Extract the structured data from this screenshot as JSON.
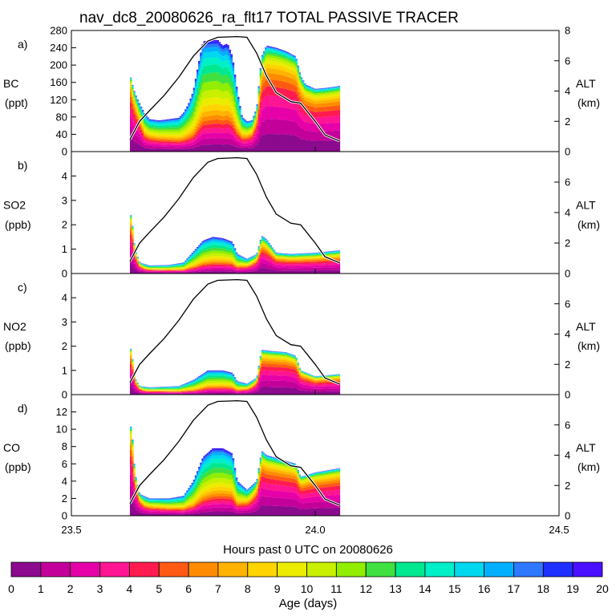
{
  "title": "nav_dc8_20080626_ra_flt17 TOTAL PASSIVE TRACER",
  "xlabel": "Hours past 0 UTC on 20080626",
  "colorbar_label": "Age (days)",
  "colorbar_ticks": [
    "0",
    "1",
    "2",
    "3",
    "4",
    "5",
    "6",
    "7",
    "8",
    "9",
    "10",
    "11",
    "12",
    "13",
    "14",
    "15",
    "16",
    "17",
    "18",
    "19",
    "20"
  ],
  "colorbar_colors": [
    "#8b0a8e",
    "#c4009a",
    "#e600a8",
    "#ff1493",
    "#ff1a50",
    "#ff5a14",
    "#ff8c00",
    "#ffb300",
    "#ffd400",
    "#ecec00",
    "#c8f000",
    "#92ee00",
    "#40e040",
    "#00e890",
    "#00f0c8",
    "#00d8f0",
    "#00b0ff",
    "#2e78ff",
    "#1e30ff",
    "#4a10ff"
  ],
  "chart_data": [
    {
      "type": "area",
      "panel": "a)",
      "species": "BC",
      "units": "(ppt)",
      "ylim": [
        0,
        280
      ],
      "yticks": [
        "0",
        "40",
        "80",
        "120",
        "160",
        "200",
        "240",
        "280"
      ],
      "xlim": [
        23.5,
        24.5
      ],
      "xticks": [
        "23.5",
        "24.0",
        "24.5"
      ],
      "right_label": "ALT",
      "right_units": "(km)",
      "right_ylim": [
        0,
        8
      ],
      "right_ticks": [
        "0",
        "2",
        "4",
        "6",
        "8"
      ],
      "total": [
        [
          23.62,
          180
        ],
        [
          23.625,
          155
        ],
        [
          23.63,
          135
        ],
        [
          23.64,
          110
        ],
        [
          23.65,
          88
        ],
        [
          23.66,
          75
        ],
        [
          23.68,
          72
        ],
        [
          23.7,
          75
        ],
        [
          23.72,
          78
        ],
        [
          23.73,
          90
        ],
        [
          23.74,
          110
        ],
        [
          23.75,
          140
        ],
        [
          23.76,
          200
        ],
        [
          23.77,
          255
        ],
        [
          23.79,
          258
        ],
        [
          23.8,
          258
        ],
        [
          23.81,
          245
        ],
        [
          23.82,
          250
        ],
        [
          23.83,
          220
        ],
        [
          23.84,
          140
        ],
        [
          23.85,
          80
        ],
        [
          23.86,
          70
        ],
        [
          23.87,
          72
        ],
        [
          23.88,
          100
        ],
        [
          23.89,
          220
        ],
        [
          23.9,
          245
        ],
        [
          23.92,
          240
        ],
        [
          23.94,
          232
        ],
        [
          23.96,
          220
        ],
        [
          23.97,
          175
        ],
        [
          23.98,
          155
        ],
        [
          24.0,
          145
        ],
        [
          24.02,
          147
        ],
        [
          24.04,
          150
        ],
        [
          24.05,
          152
        ]
      ],
      "young_fraction": [
        [
          23.62,
          0.95
        ],
        [
          23.63,
          0.7
        ],
        [
          23.65,
          0.25
        ],
        [
          23.75,
          0.12
        ],
        [
          23.84,
          0.15
        ],
        [
          23.87,
          0.35
        ],
        [
          23.89,
          0.72
        ],
        [
          23.93,
          0.75
        ],
        [
          23.97,
          0.76
        ],
        [
          24.05,
          0.8
        ]
      ],
      "altitude_km": [
        [
          23.62,
          0.8
        ],
        [
          23.64,
          2.0
        ],
        [
          23.66,
          2.7
        ],
        [
          23.69,
          3.7
        ],
        [
          23.72,
          4.9
        ],
        [
          23.75,
          6.3
        ],
        [
          23.78,
          7.3
        ],
        [
          23.8,
          7.55
        ],
        [
          23.84,
          7.6
        ],
        [
          23.86,
          7.55
        ],
        [
          23.88,
          6.5
        ],
        [
          23.9,
          5.0
        ],
        [
          23.92,
          3.9
        ],
        [
          23.95,
          3.3
        ],
        [
          23.97,
          3.2
        ],
        [
          24.0,
          2.0
        ],
        [
          24.02,
          1.1
        ],
        [
          24.05,
          0.7
        ]
      ]
    },
    {
      "type": "area",
      "panel": "b)",
      "species": "SO2",
      "units": "(ppb)",
      "ylim": [
        0,
        5
      ],
      "yticks": [
        "0",
        "1",
        "2",
        "3",
        "4"
      ],
      "xlim": [
        23.5,
        24.5
      ],
      "xticks": [],
      "right_label": "ALT",
      "right_units": "(km)",
      "right_ylim": [
        0,
        8
      ],
      "right_ticks": [
        "0",
        "2",
        "4",
        "6"
      ],
      "total": [
        [
          23.62,
          2.6
        ],
        [
          23.625,
          2.0
        ],
        [
          23.63,
          1.0
        ],
        [
          23.64,
          0.45
        ],
        [
          23.66,
          0.33
        ],
        [
          23.7,
          0.35
        ],
        [
          23.73,
          0.45
        ],
        [
          23.75,
          0.9
        ],
        [
          23.77,
          1.35
        ],
        [
          23.79,
          1.5
        ],
        [
          23.81,
          1.45
        ],
        [
          23.83,
          1.3
        ],
        [
          23.84,
          0.8
        ],
        [
          23.86,
          0.6
        ],
        [
          23.88,
          0.8
        ],
        [
          23.89,
          1.55
        ],
        [
          23.9,
          1.4
        ],
        [
          23.92,
          0.85
        ],
        [
          23.95,
          0.8
        ],
        [
          24.0,
          0.85
        ],
        [
          24.05,
          0.95
        ]
      ],
      "young_fraction": [
        [
          23.62,
          0.95
        ],
        [
          23.63,
          0.8
        ],
        [
          23.65,
          0.3
        ],
        [
          23.75,
          0.12
        ],
        [
          23.84,
          0.15
        ],
        [
          23.87,
          0.35
        ],
        [
          23.89,
          0.6
        ],
        [
          23.95,
          0.55
        ],
        [
          24.05,
          0.55
        ]
      ],
      "altitude_km": [
        [
          23.62,
          0.8
        ],
        [
          23.64,
          2.0
        ],
        [
          23.66,
          2.7
        ],
        [
          23.69,
          3.7
        ],
        [
          23.72,
          4.9
        ],
        [
          23.75,
          6.3
        ],
        [
          23.78,
          7.3
        ],
        [
          23.8,
          7.55
        ],
        [
          23.84,
          7.6
        ],
        [
          23.86,
          7.55
        ],
        [
          23.88,
          6.5
        ],
        [
          23.9,
          5.0
        ],
        [
          23.92,
          3.9
        ],
        [
          23.95,
          3.3
        ],
        [
          23.97,
          3.2
        ],
        [
          24.0,
          2.0
        ],
        [
          24.02,
          1.1
        ],
        [
          24.05,
          0.7
        ]
      ]
    },
    {
      "type": "area",
      "panel": "c)",
      "species": "NO2",
      "units": "(ppb)",
      "ylim": [
        0,
        5
      ],
      "yticks": [
        "0",
        "1",
        "2",
        "3",
        "4"
      ],
      "xlim": [
        23.5,
        24.5
      ],
      "xticks": [],
      "right_label": "ALT",
      "right_units": "(km)",
      "right_ylim": [
        0,
        8
      ],
      "right_ticks": [
        "0",
        "2",
        "4",
        "6"
      ],
      "total": [
        [
          23.62,
          2.1
        ],
        [
          23.625,
          1.5
        ],
        [
          23.63,
          0.7
        ],
        [
          23.64,
          0.35
        ],
        [
          23.66,
          0.3
        ],
        [
          23.72,
          0.35
        ],
        [
          23.75,
          0.6
        ],
        [
          23.78,
          1.0
        ],
        [
          23.81,
          1.0
        ],
        [
          23.83,
          0.9
        ],
        [
          23.84,
          0.55
        ],
        [
          23.86,
          0.45
        ],
        [
          23.88,
          0.7
        ],
        [
          23.89,
          1.85
        ],
        [
          23.91,
          1.8
        ],
        [
          23.94,
          1.75
        ],
        [
          23.96,
          1.6
        ],
        [
          23.97,
          1.0
        ],
        [
          24.0,
          0.75
        ],
        [
          24.05,
          0.85
        ]
      ],
      "young_fraction": [
        [
          23.62,
          0.95
        ],
        [
          23.63,
          0.8
        ],
        [
          23.65,
          0.3
        ],
        [
          23.75,
          0.12
        ],
        [
          23.84,
          0.15
        ],
        [
          23.87,
          0.35
        ],
        [
          23.89,
          0.78
        ],
        [
          23.95,
          0.8
        ],
        [
          24.05,
          0.72
        ]
      ],
      "altitude_km": [
        [
          23.62,
          0.8
        ],
        [
          23.64,
          2.0
        ],
        [
          23.66,
          2.7
        ],
        [
          23.69,
          3.7
        ],
        [
          23.72,
          4.9
        ],
        [
          23.75,
          6.3
        ],
        [
          23.78,
          7.3
        ],
        [
          23.8,
          7.55
        ],
        [
          23.84,
          7.6
        ],
        [
          23.86,
          7.55
        ],
        [
          23.88,
          6.5
        ],
        [
          23.9,
          5.0
        ],
        [
          23.92,
          3.9
        ],
        [
          23.95,
          3.3
        ],
        [
          23.97,
          3.2
        ],
        [
          24.0,
          2.0
        ],
        [
          24.02,
          1.1
        ],
        [
          24.05,
          0.7
        ]
      ]
    },
    {
      "type": "area",
      "panel": "d)",
      "species": "CO",
      "units": "(ppb)",
      "ylim": [
        0,
        14
      ],
      "yticks": [
        "0",
        "2",
        "4",
        "6",
        "8",
        "10",
        "12"
      ],
      "xlim": [
        23.5,
        24.5
      ],
      "xticks": [
        "23.5",
        "24.0",
        "24.5"
      ],
      "right_label": "ALT",
      "right_units": "(km)",
      "right_ylim": [
        0,
        8
      ],
      "right_ticks": [
        "0",
        "2",
        "4",
        "6"
      ],
      "total": [
        [
          23.62,
          11.0
        ],
        [
          23.625,
          9.0
        ],
        [
          23.63,
          5.0
        ],
        [
          23.64,
          2.5
        ],
        [
          23.66,
          2.0
        ],
        [
          23.7,
          2.0
        ],
        [
          23.73,
          2.3
        ],
        [
          23.75,
          4.0
        ],
        [
          23.77,
          6.8
        ],
        [
          23.79,
          7.8
        ],
        [
          23.81,
          7.8
        ],
        [
          23.83,
          7.2
        ],
        [
          23.84,
          4.0
        ],
        [
          23.86,
          3.0
        ],
        [
          23.88,
          4.0
        ],
        [
          23.89,
          7.5
        ],
        [
          23.9,
          7.0
        ],
        [
          23.93,
          6.5
        ],
        [
          23.96,
          6.0
        ],
        [
          23.97,
          4.5
        ],
        [
          24.0,
          5.0
        ],
        [
          24.05,
          5.5
        ]
      ],
      "young_fraction": [
        [
          23.62,
          0.95
        ],
        [
          23.63,
          0.75
        ],
        [
          23.65,
          0.3
        ],
        [
          23.75,
          0.12
        ],
        [
          23.84,
          0.15
        ],
        [
          23.87,
          0.35
        ],
        [
          23.89,
          0.72
        ],
        [
          23.95,
          0.78
        ],
        [
          24.05,
          0.78
        ]
      ],
      "altitude_km": [
        [
          23.62,
          0.8
        ],
        [
          23.64,
          2.0
        ],
        [
          23.66,
          2.7
        ],
        [
          23.69,
          3.7
        ],
        [
          23.72,
          4.9
        ],
        [
          23.75,
          6.3
        ],
        [
          23.78,
          7.3
        ],
        [
          23.8,
          7.55
        ],
        [
          23.84,
          7.6
        ],
        [
          23.86,
          7.55
        ],
        [
          23.88,
          6.5
        ],
        [
          23.9,
          5.0
        ],
        [
          23.92,
          3.9
        ],
        [
          23.95,
          3.3
        ],
        [
          23.97,
          3.2
        ],
        [
          24.0,
          2.0
        ],
        [
          24.02,
          1.1
        ],
        [
          24.05,
          0.7
        ]
      ]
    }
  ]
}
